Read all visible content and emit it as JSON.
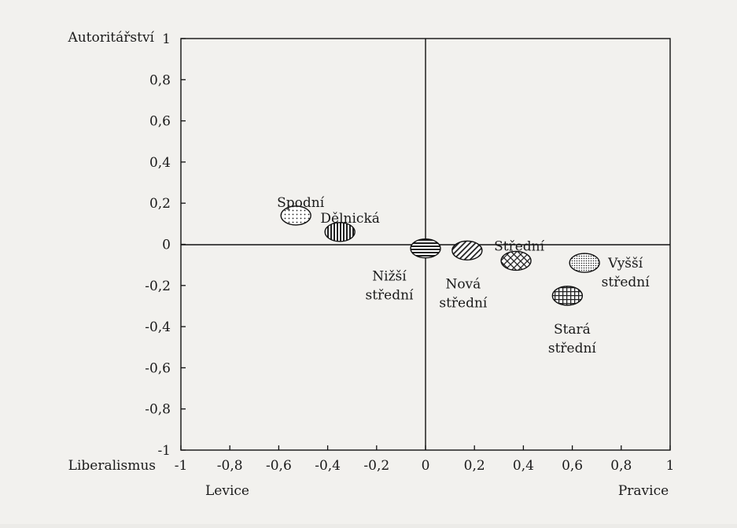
{
  "chart_data": {
    "type": "scatter",
    "xlim": [
      -1,
      1
    ],
    "ylim": [
      -1,
      1
    ],
    "grid": false,
    "x_ticks": [
      -1,
      -0.8,
      -0.6,
      -0.4,
      -0.2,
      0,
      0.2,
      0.4,
      0.6,
      0.8,
      1
    ],
    "y_ticks": [
      1,
      0.8,
      0.6,
      0.4,
      0.2,
      0,
      -0.2,
      -0.4,
      -0.6,
      -0.8,
      -1
    ],
    "x_tick_labels": [
      "-1",
      "-0,8",
      "-0,6",
      "-0,4",
      "-0,2",
      "0",
      "0,2",
      "0,4",
      "0,6",
      "0,8",
      "1"
    ],
    "y_tick_labels": [
      "1",
      "0,8",
      "0,6",
      "0,4",
      "0,2",
      "0",
      "-0,2",
      "-0,4",
      "-0,6",
      "-0,8",
      "-1"
    ],
    "axis_labels": {
      "y_top": "Autoritářství",
      "x_left": "Liberalismus",
      "x_left_end": "Levice",
      "x_right_end": "Pravice"
    },
    "points": [
      {
        "id": "spodni",
        "lines": [
          "Spodní"
        ],
        "x": -0.53,
        "y": 0.14,
        "pattern": "dots"
      },
      {
        "id": "delnicka",
        "lines": [
          "Dělnická"
        ],
        "x": -0.35,
        "y": 0.06,
        "pattern": "vlines"
      },
      {
        "id": "nizsi-stredni",
        "lines": [
          "Nižší",
          "střední"
        ],
        "x": 0.0,
        "y": -0.02,
        "pattern": "hlines"
      },
      {
        "id": "nova-stredni",
        "lines": [
          "Nová",
          "střední"
        ],
        "x": 0.17,
        "y": -0.03,
        "pattern": "diag"
      },
      {
        "id": "stredni",
        "lines": [
          "Střední"
        ],
        "x": 0.37,
        "y": -0.08,
        "pattern": "crosshatch"
      },
      {
        "id": "vyssi-stredni",
        "lines": [
          "Vyšší",
          "střední"
        ],
        "x": 0.65,
        "y": -0.09,
        "pattern": "finedots"
      },
      {
        "id": "stara-stredni",
        "lines": [
          "Stará",
          "střední"
        ],
        "x": 0.58,
        "y": -0.25,
        "pattern": "grid"
      }
    ]
  }
}
